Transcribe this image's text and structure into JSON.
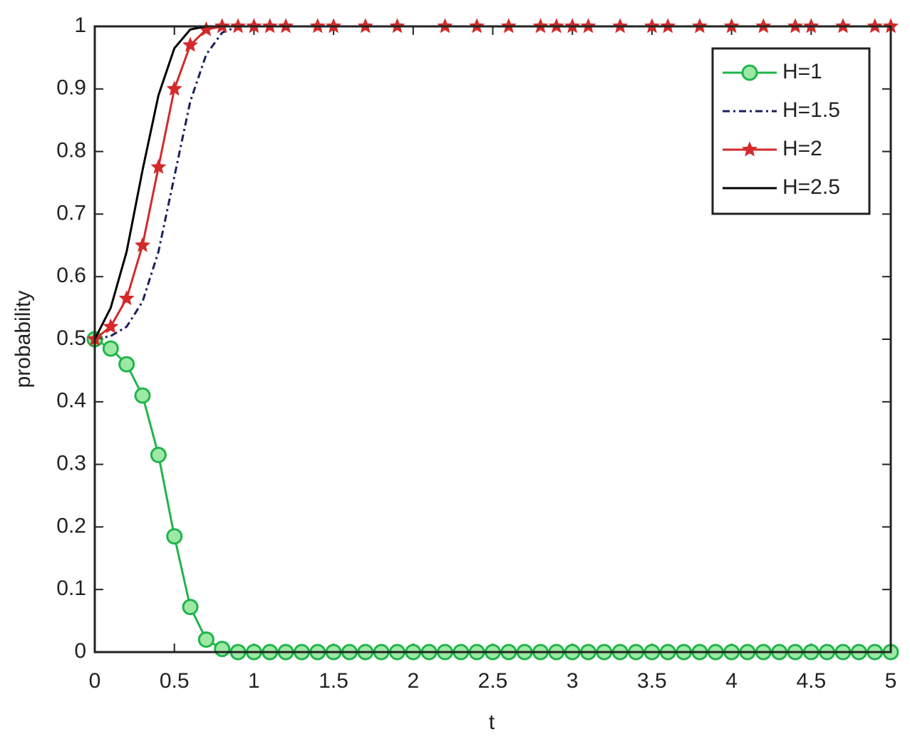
{
  "chart_data": {
    "type": "line",
    "xlabel": "t",
    "ylabel": "probability",
    "xlim": [
      0,
      5
    ],
    "ylim": [
      0,
      1
    ],
    "xticks": [
      0,
      0.5,
      1,
      1.5,
      2,
      2.5,
      3,
      3.5,
      4,
      4.5,
      5
    ],
    "yticks": [
      0,
      0.1,
      0.2,
      0.3,
      0.4,
      0.5,
      0.6,
      0.7,
      0.8,
      0.9,
      1
    ],
    "legend": "northeast",
    "series": [
      {
        "name": "H=1",
        "color": "#1fb54a",
        "marker": "circle",
        "dash": "solid",
        "x": [
          0,
          0.1,
          0.2,
          0.3,
          0.4,
          0.5,
          0.6,
          0.7,
          0.8,
          0.9,
          1,
          1.1,
          1.2,
          1.3,
          1.4,
          1.5,
          1.6,
          1.7,
          1.8,
          1.9,
          2,
          2.1,
          2.2,
          2.3,
          2.4,
          2.5,
          2.6,
          2.7,
          2.8,
          2.9,
          3,
          3.1,
          3.2,
          3.3,
          3.4,
          3.5,
          3.6,
          3.7,
          3.8,
          3.9,
          4,
          4.1,
          4.2,
          4.3,
          4.4,
          4.5,
          4.6,
          4.7,
          4.8,
          4.9,
          5
        ],
        "values": [
          0.5,
          0.485,
          0.46,
          0.41,
          0.315,
          0.185,
          0.072,
          0.02,
          0.005,
          0,
          0,
          0,
          0,
          0,
          0,
          0,
          0,
          0,
          0,
          0,
          0,
          0,
          0,
          0,
          0,
          0,
          0,
          0,
          0,
          0,
          0,
          0,
          0,
          0,
          0,
          0,
          0,
          0,
          0,
          0,
          0,
          0,
          0,
          0,
          0,
          0,
          0,
          0,
          0,
          0,
          0
        ]
      },
      {
        "name": "H=1.5",
        "color": "#1c1f5e",
        "marker": "none",
        "dash": "dashdot",
        "x": [
          0,
          0.1,
          0.2,
          0.3,
          0.4,
          0.5,
          0.6,
          0.7,
          0.8,
          0.9,
          5
        ],
        "values": [
          0.5,
          0.505,
          0.52,
          0.56,
          0.64,
          0.76,
          0.88,
          0.955,
          0.99,
          1,
          1
        ]
      },
      {
        "name": "H=2",
        "color": "#d42a2a",
        "marker": "star",
        "dash": "solid",
        "x": [
          0,
          0.1,
          0.2,
          0.3,
          0.4,
          0.5,
          0.6,
          0.7,
          0.8,
          0.9,
          1,
          1.1,
          1.2,
          1.4,
          1.5,
          1.7,
          1.9,
          2.2,
          2.4,
          2.6,
          2.8,
          2.9,
          3,
          3.1,
          3.3,
          3.5,
          3.6,
          3.8,
          4,
          4.2,
          4.4,
          4.5,
          4.7,
          4.9,
          5
        ],
        "values": [
          0.5,
          0.52,
          0.565,
          0.65,
          0.775,
          0.9,
          0.97,
          0.995,
          1,
          1,
          1,
          1,
          1,
          1,
          1,
          1,
          1,
          1,
          1,
          1,
          1,
          1,
          1,
          1,
          1,
          1,
          1,
          1,
          1,
          1,
          1,
          1,
          1,
          1,
          1
        ]
      },
      {
        "name": "H=2.5",
        "color": "#000000",
        "marker": "none",
        "dash": "solid",
        "x": [
          0,
          0.1,
          0.2,
          0.3,
          0.4,
          0.5,
          0.6,
          0.7,
          5
        ],
        "values": [
          0.5,
          0.55,
          0.64,
          0.77,
          0.89,
          0.965,
          0.995,
          1,
          1
        ]
      }
    ]
  }
}
